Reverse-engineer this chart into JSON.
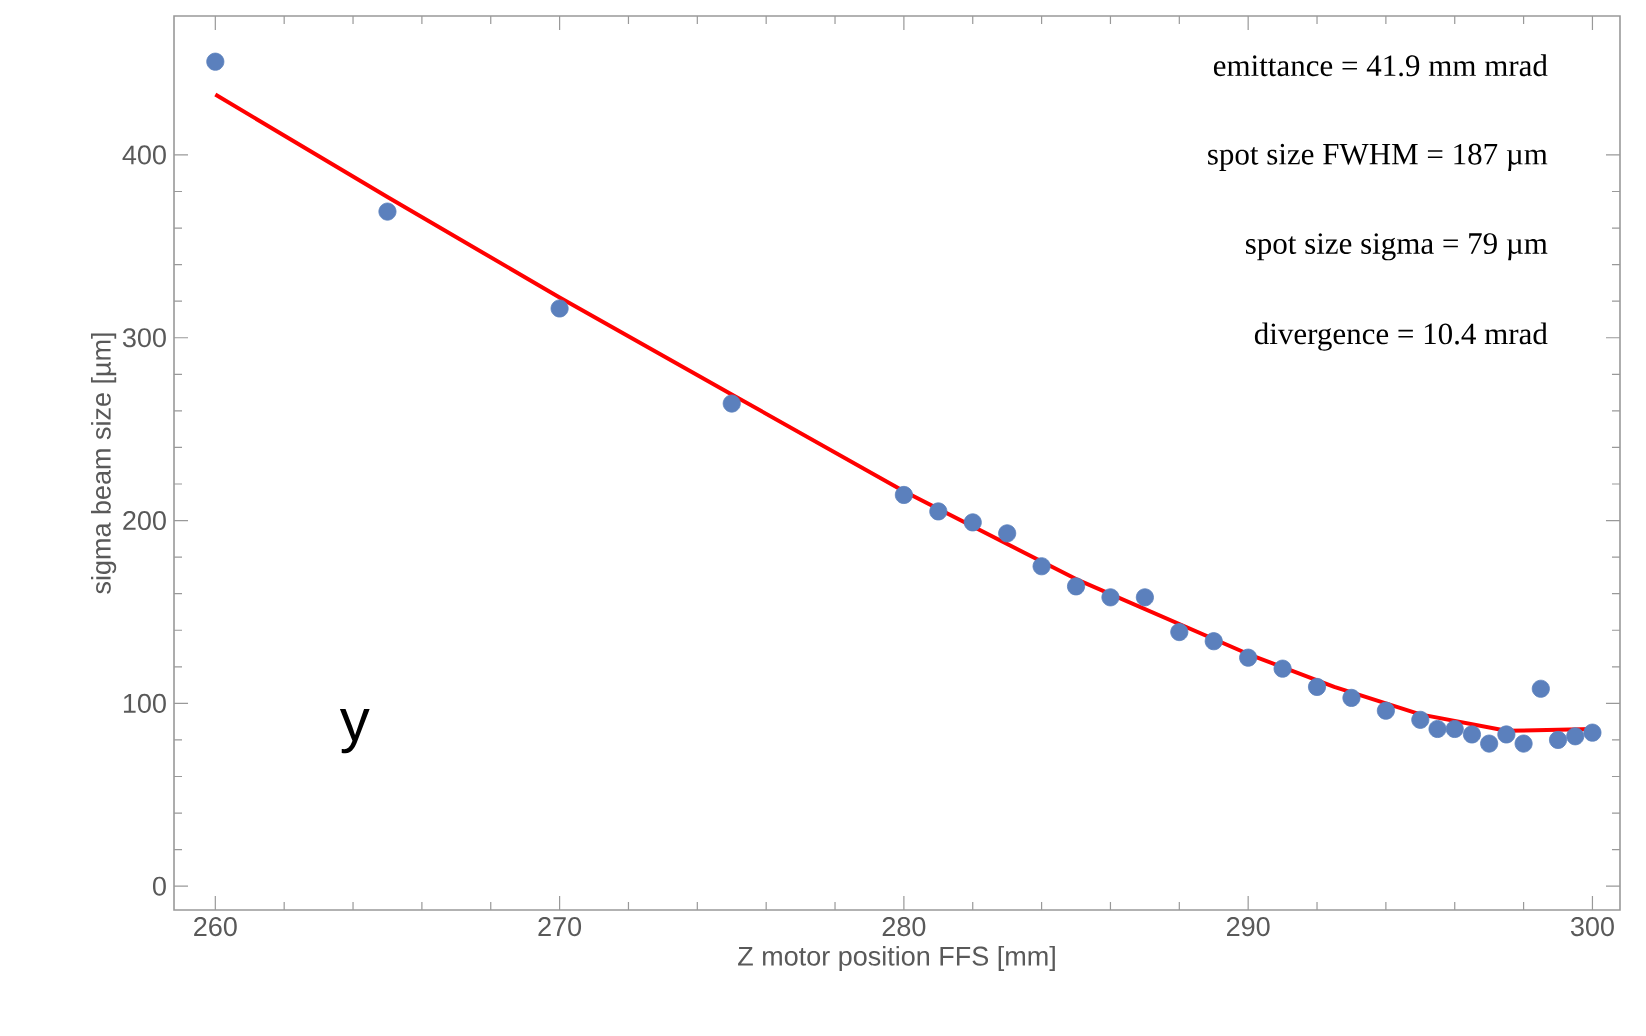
{
  "chart_data": {
    "type": "scatter",
    "xlabel": "Z motor position FFS [mm]",
    "ylabel": "sigma beam size [µm]",
    "xlim": [
      258.8,
      300.8
    ],
    "ylim": [
      -13,
      476
    ],
    "xticks": [
      260,
      270,
      280,
      290,
      300
    ],
    "yticks": [
      0,
      100,
      200,
      300,
      400
    ],
    "grid": false,
    "marker": "circle",
    "annotations": [
      "emittance = 41.9 mm mrad",
      "spot size FWHM = 187 µm",
      "spot size sigma = 79 µm",
      "divergence = 10.4 mrad",
      "y"
    ],
    "series": [
      {
        "color": "#5b80bd",
        "x": [
          260,
          265,
          270,
          275,
          280,
          281,
          282,
          283,
          284,
          285,
          286,
          287,
          288,
          289,
          290,
          291,
          292,
          293,
          294,
          295,
          295.5,
          296,
          296.5,
          297,
          297.5,
          298,
          298.5,
          299,
          299.5,
          300
        ],
        "values": [
          451,
          369,
          316,
          264,
          214,
          205,
          199,
          193,
          175,
          164,
          158,
          158,
          139,
          134,
          125,
          119,
          109,
          103,
          96,
          91,
          86,
          86,
          83,
          78,
          83,
          78,
          108,
          80,
          82,
          84
        ]
      },
      {
        "type": "line",
        "marker": "none",
        "color": "#ff0000",
        "line_style": "solid",
        "x": [
          260,
          265,
          270,
          275,
          280,
          285,
          290,
          292.5,
          295,
          297.5,
          300
        ],
        "values": [
          433,
          377,
          322,
          269,
          216,
          168,
          127,
          109,
          94,
          85,
          86
        ]
      }
    ]
  }
}
